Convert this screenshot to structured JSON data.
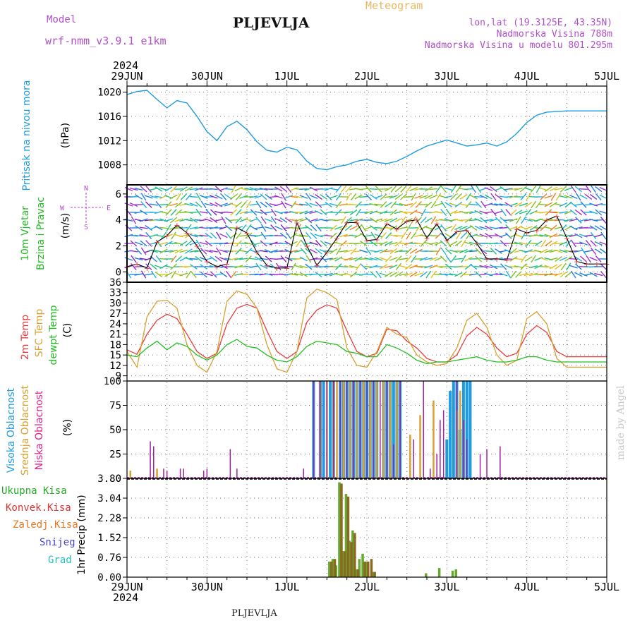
{
  "header": {
    "model_label": "Model",
    "model_name": "wrf-nmm_v3.9.1 e1km",
    "station": "PLJEVLJA",
    "meteogram": "Meteogram",
    "lonlat": "lon,lat (19.3125E, 43.35N)",
    "altitude": "Nadmorska Visina 788m",
    "model_altitude": "Nadmorska Visina u modelu 801.295m",
    "year": "2024",
    "watermark": "made by Angel",
    "footer_station": "PLJEVLJA"
  },
  "colors": {
    "pressure": "#1e9be0",
    "t2m": "#e83c3c",
    "sfc": "#d8a030",
    "dewpt": "#22c022",
    "high_cloud": "#1e9be0",
    "mid_cloud": "#d8a030",
    "low_cloud": "#a020a0",
    "total_precip": "#44bb44",
    "convective": "#dd3333",
    "frozen": "#ee7722",
    "snow": "#4444dd",
    "hail": "#22bbbb",
    "wind_line": "#000000",
    "grid": "#777777"
  },
  "chart_data": [
    {
      "type": "line",
      "panel": "pressure",
      "ylabel_lines": [
        "Pritisak na nivou mora",
        "(hPa)"
      ],
      "yticks": [
        1008,
        1012,
        1016,
        1020
      ],
      "ylim": [
        1004.7,
        1021
      ],
      "x_unit": "hours since 29JUN 00Z",
      "x": [
        0,
        3,
        6,
        9,
        12,
        15,
        18,
        21,
        24,
        27,
        30,
        33,
        36,
        39,
        42,
        45,
        48,
        51,
        54,
        57,
        60,
        63,
        66,
        69,
        72,
        75,
        78,
        81,
        84,
        87,
        90,
        93,
        96,
        99,
        102,
        105,
        108,
        111,
        114,
        117,
        120,
        123,
        126,
        129,
        132,
        135,
        138,
        141,
        144
      ],
      "values": [
        1019.6,
        1020.1,
        1020.3,
        1018.8,
        1017.4,
        1018.6,
        1018.2,
        1016.0,
        1013.5,
        1012.0,
        1014.3,
        1015.2,
        1013.8,
        1011.8,
        1010.4,
        1010.1,
        1010.9,
        1010.5,
        1008.6,
        1007.4,
        1007.2,
        1007.7,
        1008.0,
        1008.6,
        1008.9,
        1008.4,
        1008.2,
        1008.6,
        1009.4,
        1010.3,
        1011.1,
        1011.6,
        1012.1,
        1011.6,
        1011.1,
        1011.3,
        1011.6,
        1011.1,
        1011.8,
        1013.2,
        1015.0,
        1016.2,
        1016.7,
        1016.8,
        1016.9,
        1016.9,
        1016.9,
        1016.9,
        1016.9
      ],
      "series_count": 1
    },
    {
      "type": "line",
      "panel": "wind",
      "ylabel_lines": [
        "10m Vjetar",
        "Brzina i Pravac",
        "(m/s)"
      ],
      "compass_labels": [
        "N",
        "W",
        "E",
        "S"
      ],
      "yticks": [
        0,
        2,
        4,
        6
      ],
      "ylim": [
        -0.8,
        6.7
      ],
      "x_unit": "hours since 29JUN 00Z",
      "x": [
        0,
        3,
        6,
        9,
        12,
        15,
        18,
        21,
        24,
        27,
        30,
        33,
        36,
        39,
        42,
        45,
        48,
        51,
        54,
        57,
        60,
        63,
        66,
        69,
        72,
        75,
        78,
        81,
        84,
        87,
        90,
        93,
        96,
        99,
        102,
        105,
        108,
        111,
        114,
        117,
        120,
        123,
        126,
        129,
        132,
        135,
        138,
        141,
        144
      ],
      "values": [
        0.4,
        0.6,
        0.3,
        2.3,
        2.8,
        3.6,
        3.0,
        2.0,
        0.8,
        0.4,
        0.6,
        3.4,
        3.0,
        1.5,
        0.5,
        0.3,
        0.3,
        3.8,
        2.0,
        0.5,
        1.5,
        2.6,
        3.8,
        3.8,
        2.4,
        2.5,
        3.7,
        3.3,
        3.9,
        4.0,
        2.6,
        3.7,
        2.4,
        3.1,
        3.2,
        2.2,
        1.0,
        1.0,
        0.9,
        3.3,
        3.0,
        3.2,
        4.0,
        4.3,
        2.6,
        0.8,
        0.6,
        0.6,
        0.6
      ],
      "series_count": 1
    },
    {
      "type": "line",
      "panel": "temperature",
      "ylabel_lines": [
        "2m Temp",
        "SFC Temp",
        "dewpt Temp",
        "(C)"
      ],
      "yticks": [
        9,
        12,
        15,
        18,
        21,
        24,
        27,
        30,
        33,
        36
      ],
      "ylim": [
        7.5,
        36
      ],
      "x_unit": "hours since 29JUN 00Z",
      "x": [
        0,
        3,
        6,
        9,
        12,
        15,
        18,
        21,
        24,
        27,
        30,
        33,
        36,
        39,
        42,
        45,
        48,
        51,
        54,
        57,
        60,
        63,
        66,
        69,
        72,
        75,
        78,
        81,
        84,
        87,
        90,
        93,
        96,
        99,
        102,
        105,
        108,
        111,
        114,
        117,
        120,
        123,
        126,
        129,
        132,
        135,
        138,
        141,
        144
      ],
      "series": [
        {
          "key": "t2m",
          "values": [
            16.5,
            15.2,
            21,
            25,
            26.8,
            25.5,
            21,
            16,
            14,
            15.5,
            24,
            28.5,
            29.6,
            28.5,
            22,
            16,
            14,
            16,
            24.5,
            28,
            29.5,
            28.5,
            22,
            16,
            14.5,
            15.5,
            22.5,
            22,
            19,
            17,
            14,
            13,
            13,
            15,
            20.5,
            23,
            21,
            17,
            14.5,
            15.5,
            21,
            23.5,
            21.5,
            16,
            14.5,
            14.5,
            14.5,
            14.5,
            14.5
          ]
        },
        {
          "key": "sfc",
          "values": [
            16,
            11.5,
            26,
            30.5,
            30.8,
            28.5,
            18,
            12,
            10,
            16,
            30.5,
            33.5,
            32.5,
            28.5,
            18,
            11,
            10,
            16,
            31.5,
            34,
            33,
            31,
            17,
            12,
            11.5,
            16,
            23,
            21,
            20,
            15,
            13,
            12,
            12.5,
            17,
            25,
            27,
            23,
            15,
            12,
            13.5,
            25.5,
            27.5,
            24,
            14,
            11.5,
            11.5,
            11.5,
            11.5,
            11.5
          ]
        },
        {
          "key": "dewpt",
          "values": [
            15,
            14.5,
            17,
            19,
            16.5,
            18.5,
            17.5,
            15,
            13.5,
            15,
            18,
            19.5,
            17.5,
            17,
            15,
            13.5,
            13,
            14.5,
            17.5,
            19,
            18.5,
            18,
            16,
            15.5,
            14.5,
            14.5,
            18,
            17,
            15.5,
            13.5,
            12.5,
            13,
            13,
            13.5,
            14,
            14.5,
            13.5,
            13,
            13,
            13.5,
            14.5,
            14.5,
            13.5,
            13,
            13,
            13,
            13,
            13,
            13
          ]
        }
      ]
    },
    {
      "type": "bar",
      "panel": "cloud",
      "ylabel_lines": [
        "Visoka Oblacnost",
        "Srednja Oblacnost",
        "Niska Oblacnost",
        "(%)"
      ],
      "yticks": [
        0,
        25,
        50,
        75,
        100
      ],
      "ylim": [
        0,
        100
      ],
      "x_unit": "hours since 29JUN 00Z",
      "series": [
        {
          "key": "high",
          "x": [
            56,
            58,
            59,
            61,
            62,
            64,
            65,
            66,
            67,
            68,
            69,
            70,
            71,
            72,
            73,
            74,
            75,
            77,
            78,
            79,
            80,
            81,
            82,
            96,
            97,
            98,
            99,
            100,
            101,
            102,
            103
          ],
          "values": [
            100,
            100,
            100,
            100,
            100,
            100,
            100,
            100,
            100,
            100,
            100,
            100,
            100,
            100,
            100,
            100,
            100,
            100,
            100,
            100,
            100,
            100,
            100,
            40,
            90,
            100,
            100,
            50,
            100,
            100,
            100
          ]
        },
        {
          "key": "mid",
          "x": [
            1,
            9,
            58,
            60,
            62,
            63,
            65,
            67,
            69,
            71,
            73,
            75,
            77,
            79,
            81,
            85,
            88,
            92,
            99,
            100
          ],
          "values": [
            8,
            10,
            100,
            100,
            100,
            100,
            100,
            100,
            100,
            100,
            100,
            100,
            100,
            100,
            100,
            45,
            65,
            80,
            70,
            90
          ]
        },
        {
          "key": "low",
          "x": [
            7,
            8,
            11,
            12,
            16,
            17,
            23,
            24,
            31,
            33,
            53,
            56,
            58,
            60,
            62,
            64,
            66,
            68,
            70,
            72,
            74,
            76,
            78,
            80,
            82,
            86,
            89,
            91,
            93,
            94,
            95,
            99,
            101,
            102,
            106,
            108,
            112
          ],
          "values": [
            38,
            33,
            10,
            8,
            10,
            10,
            8,
            10,
            30,
            10,
            10,
            100,
            100,
            100,
            100,
            100,
            100,
            100,
            100,
            100,
            100,
            100,
            100,
            35,
            100,
            40,
            100,
            10,
            25,
            60,
            70,
            100,
            60,
            40,
            25,
            30,
            33
          ]
        }
      ]
    },
    {
      "type": "bar",
      "panel": "precip",
      "ylabel_lines": [
        "1hr Precip (mm)"
      ],
      "legend": [
        "Ukupna Kisa",
        "Konvek.Kisa",
        "Zaledj.Kisa",
        "Snijeg",
        "Grad"
      ],
      "yticks": [
        0,
        0.76,
        1.52,
        2.28,
        3.04,
        3.8
      ],
      "ylim": [
        0,
        3.8
      ],
      "x_unit": "hours since 29JUN 00Z",
      "series": [
        {
          "key": "total",
          "x": [
            61,
            62,
            63,
            64,
            65,
            66,
            67,
            68,
            69,
            70,
            71,
            72,
            74,
            90,
            94,
            98,
            99
          ],
          "values": [
            0.6,
            0.7,
            0.45,
            3.65,
            1.0,
            3.2,
            1.4,
            1.8,
            0.3,
            0.7,
            0.9,
            0.6,
            0.2,
            0.15,
            0.35,
            0.25,
            0.3
          ]
        },
        {
          "key": "convective",
          "x": [
            61,
            62,
            64,
            65,
            66,
            67,
            68,
            69,
            71,
            72,
            73,
            74
          ],
          "values": [
            0.6,
            0.7,
            3.6,
            1.0,
            3.1,
            1.35,
            1.7,
            0.3,
            0.6,
            0.6,
            0.7,
            0.2
          ]
        }
      ]
    }
  ],
  "axis": {
    "top_days": [
      "29JUN",
      "30JUN",
      "1JUL",
      "2JUL",
      "3JUL",
      "4JUL",
      "5JUL"
    ],
    "bottom_days": [
      "29JUN",
      "30JUN",
      "1JUL",
      "2JUL",
      "3JUL",
      "4JUL",
      "5JUL"
    ]
  }
}
